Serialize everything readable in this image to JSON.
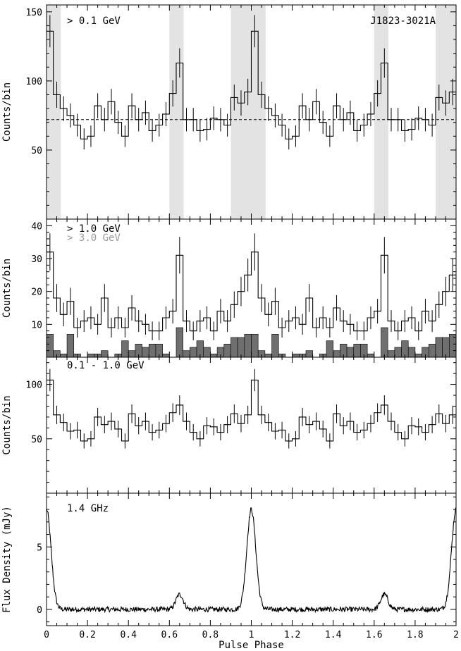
{
  "chart_data": [
    {
      "type": "step",
      "panel": "a",
      "annotation": "> 0.1 GeV",
      "source_label": "J1823-3021A",
      "ylabel": "Counts/bin",
      "ylim": [
        0,
        155
      ],
      "yticks": [
        50,
        100,
        150
      ],
      "xlim": [
        0,
        2
      ],
      "baseline": 72,
      "shaded_phase_ranges": [
        [
          0,
          0.07
        ],
        [
          0.6,
          0.67
        ],
        [
          0.9,
          1.07
        ],
        [
          1.6,
          1.67
        ],
        [
          1.9,
          2.0
        ]
      ],
      "bin_width": 0.0333,
      "values": [
        136,
        90,
        80,
        75,
        68,
        58,
        60,
        82,
        72,
        85,
        70,
        60,
        82,
        72,
        77,
        64,
        68,
        76,
        91,
        113,
        72,
        72,
        64,
        65,
        73,
        72,
        68,
        88,
        84,
        92,
        136,
        90,
        80,
        75,
        68,
        58,
        60,
        82,
        72,
        85,
        70,
        60,
        82,
        72,
        77,
        64,
        68,
        76,
        91,
        113,
        72,
        72,
        64,
        65,
        73,
        72,
        68,
        88,
        84,
        92
      ]
    },
    {
      "type": "step",
      "panel": "b",
      "annotation": "> 1.0 GeV",
      "annotation2": "> 3.0 GeV",
      "ylabel": "Counts/bin",
      "ylim": [
        0,
        42
      ],
      "yticks": [
        10,
        20,
        30,
        40
      ],
      "xlim": [
        0,
        2
      ],
      "series": [
        {
          "name": "> 1.0 GeV",
          "values": [
            32,
            18,
            13,
            17,
            9,
            11,
            12,
            10,
            18,
            9,
            12,
            9,
            15,
            11,
            10,
            8,
            8,
            12,
            14,
            31,
            11,
            8,
            11,
            12,
            8,
            14,
            11,
            16,
            20,
            25,
            32,
            18,
            13,
            17,
            9,
            11,
            12,
            10,
            18,
            9,
            12,
            9,
            15,
            11,
            10,
            8,
            8,
            12,
            14,
            31,
            11,
            8,
            11,
            12,
            8,
            14,
            11,
            16,
            20,
            25
          ]
        },
        {
          "name": "> 3.0 GeV",
          "values": [
            7,
            2,
            1,
            7,
            1,
            0,
            1,
            1,
            2,
            0,
            1,
            5,
            2,
            4,
            3,
            4,
            4,
            1,
            0,
            9,
            2,
            3,
            5,
            3,
            1,
            3,
            4,
            6,
            6,
            7,
            7,
            2,
            1,
            7,
            1,
            0,
            1,
            1,
            2,
            0,
            1,
            5,
            2,
            4,
            3,
            4,
            4,
            1,
            0,
            9,
            2,
            3,
            5,
            3,
            1,
            3,
            4,
            6,
            6,
            7
          ]
        }
      ]
    },
    {
      "type": "step",
      "panel": "c",
      "annotation": "0.1 - 1.0 GeV",
      "ylabel": "Counts/bin",
      "ylim": [
        0,
        125
      ],
      "yticks": [
        50,
        100
      ],
      "xlim": [
        0,
        2
      ],
      "values": [
        104,
        72,
        65,
        57,
        58,
        48,
        50,
        70,
        63,
        66,
        59,
        48,
        73,
        62,
        66,
        56,
        58,
        64,
        74,
        81,
        66,
        56,
        50,
        62,
        61,
        56,
        63,
        73,
        64,
        72,
        104,
        72,
        65,
        57,
        58,
        48,
        50,
        70,
        63,
        66,
        59,
        48,
        73,
        62,
        66,
        56,
        58,
        64,
        74,
        81,
        66,
        56,
        50,
        62,
        61,
        56,
        63,
        73,
        64,
        72
      ]
    },
    {
      "type": "line",
      "panel": "d",
      "annotation": "1.4 GHz",
      "ylabel": "Flux Density (mJy)",
      "xlabel": "Pulse Phase",
      "ylim": [
        -1.3,
        9.3
      ],
      "yticks": [
        0,
        5
      ],
      "xlim": [
        0,
        2
      ],
      "xticks": [
        0,
        0.2,
        0.4,
        0.6,
        0.8,
        1,
        1.2,
        1.4,
        1.6,
        1.8,
        2
      ],
      "xticklabels": [
        "0",
        "0.2",
        "0.4",
        "0.6",
        "0.8",
        "1",
        "1.2",
        "1.4",
        "1.6",
        "1.8",
        "2"
      ],
      "main_peak": {
        "phase": 1.0,
        "flux": 8.0
      },
      "secondary_peak": {
        "phase": 0.65,
        "flux": 1.2
      },
      "noise_level": 0.2
    }
  ]
}
